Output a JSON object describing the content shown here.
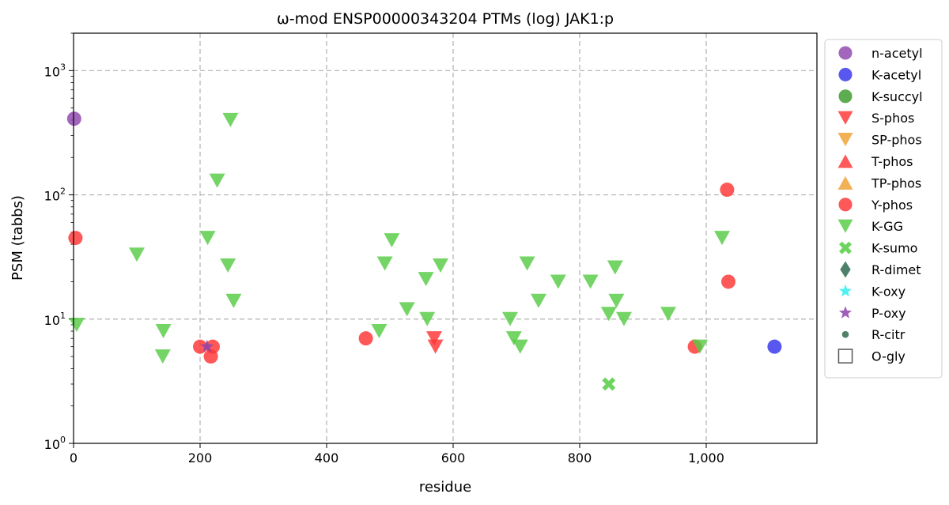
{
  "chart_data": {
    "type": "scatter",
    "title": "ω-mod ENSP00000343204 PTMs (log) JAK1:p",
    "xlabel": "residue",
    "ylabel": "PSM (tabbs)",
    "xlim": [
      0,
      1175
    ],
    "ylim": [
      1,
      2000
    ],
    "yscale": "log",
    "grid": true,
    "legend_position": "outside-right",
    "x_ticks": [
      {
        "value": 0,
        "label": "0"
      },
      {
        "value": 200,
        "label": "200"
      },
      {
        "value": 400,
        "label": "400"
      },
      {
        "value": 600,
        "label": "600"
      },
      {
        "value": 800,
        "label": "800"
      },
      {
        "value": 1000,
        "label": "1,000"
      }
    ],
    "y_ticks": [
      {
        "value": 1,
        "base": "10",
        "exp": "0"
      },
      {
        "value": 10,
        "base": "10",
        "exp": "1"
      },
      {
        "value": 100,
        "base": "10",
        "exp": "2"
      },
      {
        "value": 1000,
        "base": "10",
        "exp": "3"
      }
    ],
    "series": [
      {
        "name": "n-acetyl",
        "marker": "circle",
        "color": "#8e44ad",
        "points": [
          {
            "x": 1,
            "y": 410
          }
        ]
      },
      {
        "name": "K-acetyl",
        "marker": "circle",
        "color": "#3333ee",
        "points": [
          {
            "x": 1108,
            "y": 6
          }
        ]
      },
      {
        "name": "K-succyl",
        "marker": "circle",
        "color": "#3a9a2a",
        "points": []
      },
      {
        "name": "S-phos",
        "marker": "triangle-down",
        "color": "#ff3333",
        "points": [
          {
            "x": 570,
            "y": 7
          },
          {
            "x": 572,
            "y": 6
          }
        ]
      },
      {
        "name": "SP-phos",
        "marker": "triangle-down",
        "color": "#f0a030",
        "points": []
      },
      {
        "name": "T-phos",
        "marker": "triangle-up",
        "color": "#ff3333",
        "points": []
      },
      {
        "name": "TP-phos",
        "marker": "triangle-up",
        "color": "#f0a030",
        "points": []
      },
      {
        "name": "Y-phos",
        "marker": "circle",
        "color": "#ff3333",
        "points": [
          {
            "x": 3,
            "y": 45
          },
          {
            "x": 200,
            "y": 6
          },
          {
            "x": 220,
            "y": 6
          },
          {
            "x": 217,
            "y": 5
          },
          {
            "x": 462,
            "y": 7
          },
          {
            "x": 982,
            "y": 6
          },
          {
            "x": 1033,
            "y": 110
          },
          {
            "x": 1035,
            "y": 20
          }
        ]
      },
      {
        "name": "K-GG",
        "marker": "triangle-down",
        "color": "#55cc44",
        "points": [
          {
            "x": 5,
            "y": 9
          },
          {
            "x": 100,
            "y": 33
          },
          {
            "x": 142,
            "y": 8
          },
          {
            "x": 141,
            "y": 5
          },
          {
            "x": 212,
            "y": 45
          },
          {
            "x": 227,
            "y": 130
          },
          {
            "x": 244,
            "y": 27
          },
          {
            "x": 248,
            "y": 400
          },
          {
            "x": 253,
            "y": 14
          },
          {
            "x": 483,
            "y": 8
          },
          {
            "x": 492,
            "y": 28
          },
          {
            "x": 503,
            "y": 43
          },
          {
            "x": 527,
            "y": 12
          },
          {
            "x": 557,
            "y": 21
          },
          {
            "x": 559,
            "y": 10
          },
          {
            "x": 580,
            "y": 27
          },
          {
            "x": 690,
            "y": 10
          },
          {
            "x": 696,
            "y": 7
          },
          {
            "x": 706,
            "y": 6
          },
          {
            "x": 717,
            "y": 28
          },
          {
            "x": 735,
            "y": 14
          },
          {
            "x": 766,
            "y": 20
          },
          {
            "x": 817,
            "y": 20
          },
          {
            "x": 846,
            "y": 11
          },
          {
            "x": 856,
            "y": 26
          },
          {
            "x": 858,
            "y": 14
          },
          {
            "x": 870,
            "y": 10
          },
          {
            "x": 940,
            "y": 11
          },
          {
            "x": 990,
            "y": 6
          },
          {
            "x": 1025,
            "y": 45
          }
        ]
      },
      {
        "name": "K-sumo",
        "marker": "x-thick",
        "color": "#55cc44",
        "points": [
          {
            "x": 846,
            "y": 3
          }
        ]
      },
      {
        "name": "R-dimet",
        "marker": "diamond",
        "color": "#2e6b4f",
        "points": []
      },
      {
        "name": "K-oxy",
        "marker": "star",
        "color": "#33eeee",
        "points": []
      },
      {
        "name": "P-oxy",
        "marker": "star",
        "color": "#8e44ad",
        "points": [
          {
            "x": 211,
            "y": 6
          }
        ]
      },
      {
        "name": "R-citr",
        "marker": "small-circle",
        "color": "#2e6b4f",
        "points": []
      },
      {
        "name": "O-gly",
        "marker": "square-open",
        "color": "#555555",
        "points": []
      }
    ]
  }
}
